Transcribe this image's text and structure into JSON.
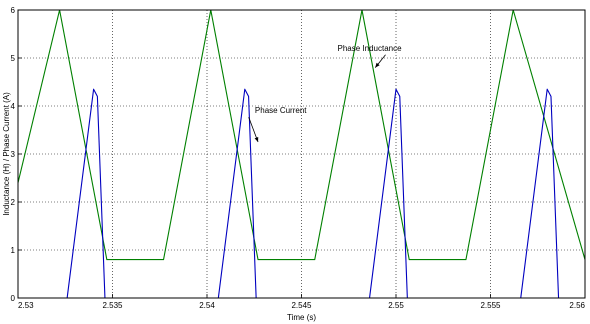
{
  "chart_data": {
    "type": "line",
    "title": "",
    "xlabel": "Time (s)",
    "ylabel": "Inductance (H) / Phase Current (A)",
    "xlim": [
      2.53,
      2.56
    ],
    "ylim": [
      0,
      6
    ],
    "x_ticks": [
      "2.53",
      "2.535",
      "2.54",
      "2.545",
      "2.55",
      "2.555",
      "2.56"
    ],
    "y_ticks": [
      "0",
      "1",
      "2",
      "3",
      "4",
      "5",
      "6"
    ],
    "grid": true,
    "series": [
      {
        "color": "#008000",
        "x": [
          2.53,
          2.5322,
          2.5347,
          2.5359,
          2.5377,
          2.5402,
          2.5427,
          2.5439,
          2.5457,
          2.5482,
          2.5507,
          2.5519,
          2.5537,
          2.5562,
          2.56
        ],
        "y": [
          2.4,
          6.0,
          0.8,
          0.8,
          0.8,
          6.0,
          0.8,
          0.8,
          0.8,
          6.0,
          0.8,
          0.8,
          0.8,
          6.0,
          0.8
        ]
      },
      {
        "color": "#0000c0",
        "x": [
          2.53,
          2.5326,
          2.534,
          2.5342,
          2.5346,
          2.5406,
          2.542,
          2.5422,
          2.5426,
          2.5486,
          2.55,
          2.5502,
          2.5506,
          2.5566,
          2.558,
          2.5582,
          2.5586,
          2.56
        ],
        "y": [
          0,
          0,
          4.35,
          4.2,
          0,
          0,
          4.35,
          4.2,
          0,
          0,
          4.35,
          4.2,
          0,
          0,
          4.35,
          4.2,
          0,
          0
        ]
      }
    ],
    "annotations": [
      {
        "text": "Phase Inductance",
        "x": 2.5486,
        "y": 5.15,
        "arrow_to": [
          2.5489,
          4.8
        ]
      },
      {
        "text": "Phase Current",
        "x": 2.5439,
        "y": 3.85,
        "arrow_to": [
          2.5427,
          3.25
        ]
      }
    ]
  }
}
